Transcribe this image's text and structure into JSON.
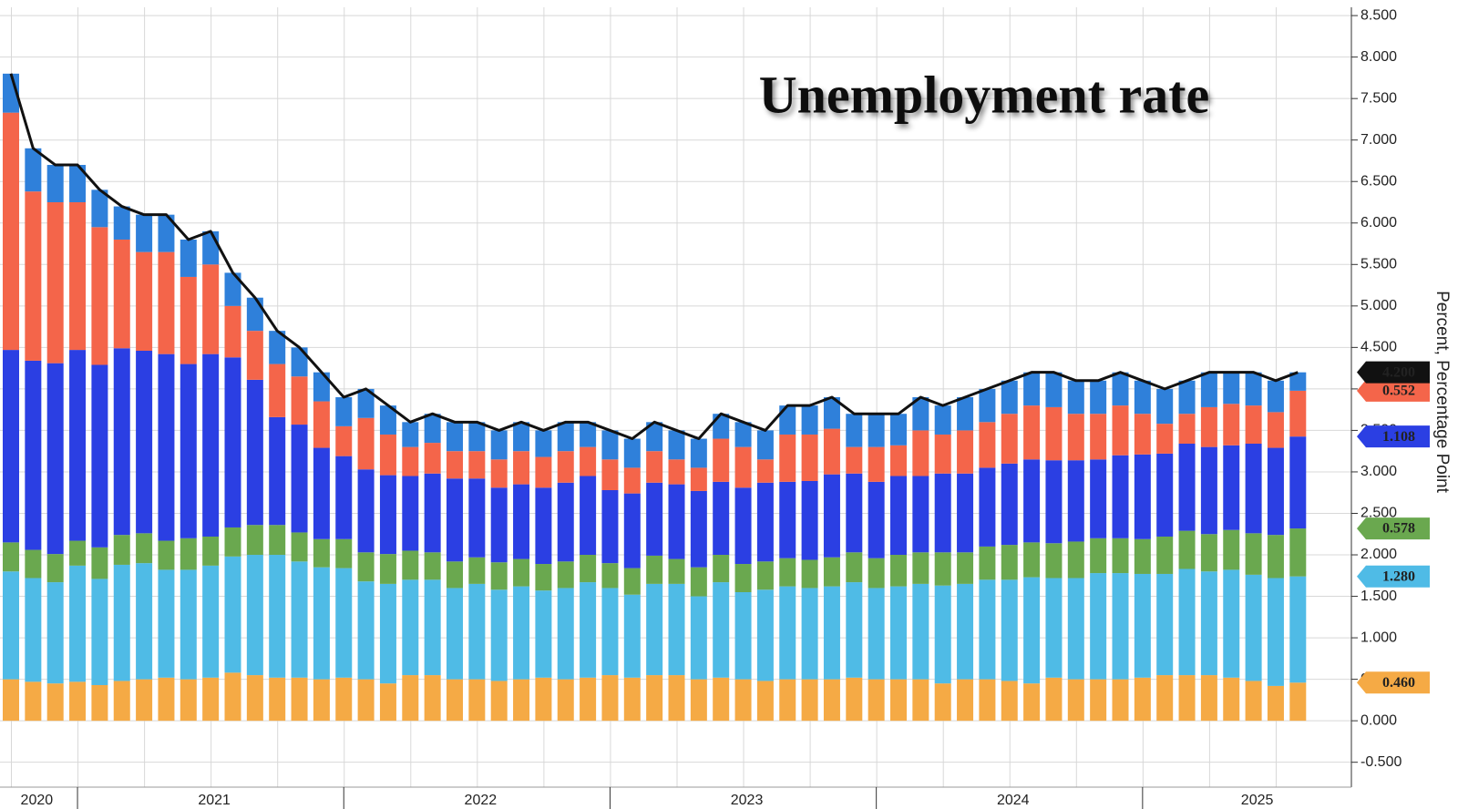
{
  "chart_data": {
    "type": "bar",
    "stacked": true,
    "title": "Unemployment rate",
    "y_axis_label": "Percent, Percentage Point",
    "grid": true,
    "categories": [
      null,
      "2020",
      null,
      null,
      null,
      null,
      null,
      null,
      null,
      "2021",
      null,
      null,
      null,
      null,
      null,
      null,
      null,
      null,
      null,
      null,
      null,
      "2022",
      null,
      null,
      null,
      null,
      null,
      null,
      null,
      null,
      null,
      null,
      null,
      "2023",
      null,
      null,
      null,
      null,
      null,
      null,
      null,
      null,
      null,
      null,
      null,
      "2024",
      null,
      null,
      null,
      null,
      null,
      null,
      null,
      null,
      null,
      null,
      "2025",
      null,
      null
    ],
    "ylim": [
      -0.8,
      8.6
    ],
    "yticks": [
      {
        "value": -0.5,
        "label": "-0.500"
      },
      {
        "value": 0,
        "label": "0.000"
      },
      {
        "value": 0.5,
        "label": "0.500"
      },
      {
        "value": 1,
        "label": "1.000"
      },
      {
        "value": 1.5,
        "label": "1.500"
      },
      {
        "value": 2,
        "label": "2.000"
      },
      {
        "value": 2.5,
        "label": "2.500"
      },
      {
        "value": 3,
        "label": "3.000"
      },
      {
        "value": 3.5,
        "label": "3.500"
      },
      {
        "value": 4,
        "label": "4.000"
      },
      {
        "value": 4.5,
        "label": "4.500"
      },
      {
        "value": 5,
        "label": "5.000"
      },
      {
        "value": 5.5,
        "label": "5.500"
      },
      {
        "value": 6,
        "label": "6.000"
      },
      {
        "value": 6.5,
        "label": "6.500"
      },
      {
        "value": 7,
        "label": "7.000"
      },
      {
        "value": 7.5,
        "label": "7.500"
      },
      {
        "value": 8,
        "label": "8.000"
      },
      {
        "value": 8.5,
        "label": "8.500"
      }
    ],
    "series": [
      {
        "color": "#f5aa45",
        "end_label": {
          "value": 0.46,
          "label": "0.460"
        },
        "values": [
          0.5,
          0.47,
          0.45,
          0.47,
          0.43,
          0.48,
          0.5,
          0.52,
          0.5,
          0.52,
          0.58,
          0.55,
          0.52,
          0.52,
          0.5,
          0.52,
          0.5,
          0.45,
          0.55,
          0.55,
          0.5,
          0.5,
          0.48,
          0.5,
          0.52,
          0.5,
          0.52,
          0.55,
          0.52,
          0.55,
          0.55,
          0.5,
          0.52,
          0.5,
          0.48,
          0.5,
          0.5,
          0.5,
          0.52,
          0.5,
          0.5,
          0.5,
          0.45,
          0.5,
          0.5,
          0.48,
          0.45,
          0.52,
          0.5,
          0.5,
          0.5,
          0.52,
          0.55,
          0.55,
          0.55,
          0.52,
          0.48,
          0.42,
          0.46
        ]
      },
      {
        "color": "#4fbbe6",
        "end_label": {
          "value": 1.28,
          "label": "1.280"
        },
        "values": [
          1.3,
          1.25,
          1.22,
          1.4,
          1.28,
          1.4,
          1.4,
          1.3,
          1.32,
          1.35,
          1.4,
          1.45,
          1.48,
          1.4,
          1.35,
          1.32,
          1.18,
          1.2,
          1.15,
          1.15,
          1.1,
          1.15,
          1.1,
          1.12,
          1.05,
          1.1,
          1.15,
          1.05,
          1.0,
          1.1,
          1.1,
          1.0,
          1.15,
          1.05,
          1.1,
          1.12,
          1.1,
          1.12,
          1.15,
          1.1,
          1.12,
          1.15,
          1.18,
          1.15,
          1.2,
          1.22,
          1.28,
          1.2,
          1.22,
          1.28,
          1.28,
          1.25,
          1.22,
          1.28,
          1.25,
          1.3,
          1.28,
          1.3,
          1.28
        ]
      },
      {
        "color": "#6aa84f",
        "end_label": {
          "value": 0.578,
          "label": "0.578"
        },
        "values": [
          0.35,
          0.34,
          0.34,
          0.3,
          0.38,
          0.36,
          0.36,
          0.35,
          0.38,
          0.35,
          0.35,
          0.36,
          0.36,
          0.35,
          0.34,
          0.35,
          0.35,
          0.36,
          0.35,
          0.33,
          0.32,
          0.32,
          0.33,
          0.33,
          0.32,
          0.32,
          0.33,
          0.3,
          0.32,
          0.34,
          0.3,
          0.35,
          0.33,
          0.34,
          0.34,
          0.34,
          0.34,
          0.35,
          0.36,
          0.36,
          0.38,
          0.38,
          0.4,
          0.38,
          0.4,
          0.42,
          0.42,
          0.42,
          0.44,
          0.42,
          0.42,
          0.42,
          0.45,
          0.46,
          0.45,
          0.48,
          0.5,
          0.52,
          0.578
        ]
      },
      {
        "color": "#2b3fe3",
        "end_label": {
          "value": 1.108,
          "label": "1.108"
        },
        "values": [
          2.32,
          2.28,
          2.3,
          2.3,
          2.2,
          2.25,
          2.2,
          2.25,
          2.1,
          2.2,
          2.05,
          1.75,
          1.3,
          1.3,
          1.1,
          1.0,
          1.0,
          0.95,
          0.9,
          0.95,
          1.0,
          0.95,
          0.9,
          0.9,
          0.92,
          0.95,
          0.95,
          0.88,
          0.9,
          0.88,
          0.9,
          0.92,
          0.88,
          0.92,
          0.95,
          0.92,
          0.95,
          1.0,
          0.95,
          0.92,
          0.95,
          0.92,
          0.95,
          0.95,
          0.95,
          0.98,
          1.0,
          1.0,
          0.98,
          0.95,
          1.0,
          1.02,
          1.0,
          1.05,
          1.05,
          1.02,
          1.08,
          1.05,
          1.108
        ]
      },
      {
        "color": "#f4654a",
        "end_label": {
          "value": 0.552,
          "label": "0.552"
        },
        "values": [
          2.86,
          2.04,
          1.94,
          1.78,
          1.66,
          1.31,
          1.19,
          1.23,
          1.05,
          1.08,
          0.62,
          0.59,
          0.64,
          0.58,
          0.56,
          0.36,
          0.62,
          0.49,
          0.35,
          0.37,
          0.33,
          0.33,
          0.34,
          0.4,
          0.37,
          0.38,
          0.35,
          0.37,
          0.31,
          0.38,
          0.3,
          0.28,
          0.52,
          0.49,
          0.28,
          0.57,
          0.56,
          0.55,
          0.32,
          0.42,
          0.37,
          0.55,
          0.47,
          0.52,
          0.55,
          0.6,
          0.65,
          0.64,
          0.56,
          0.55,
          0.6,
          0.49,
          0.36,
          0.36,
          0.48,
          0.5,
          0.46,
          0.43,
          0.552
        ]
      },
      {
        "color": "#2f80da",
        "values": [
          0.47,
          0.52,
          0.45,
          0.45,
          0.45,
          0.4,
          0.45,
          0.45,
          0.45,
          0.4,
          0.4,
          0.4,
          0.4,
          0.35,
          0.35,
          0.35,
          0.35,
          0.35,
          0.3,
          0.35,
          0.35,
          0.35,
          0.35,
          0.35,
          0.32,
          0.35,
          0.3,
          0.35,
          0.35,
          0.35,
          0.35,
          0.35,
          0.3,
          0.3,
          0.35,
          0.35,
          0.35,
          0.38,
          0.4,
          0.4,
          0.38,
          0.4,
          0.35,
          0.4,
          0.4,
          0.4,
          0.4,
          0.42,
          0.4,
          0.4,
          0.4,
          0.4,
          0.42,
          0.4,
          0.42,
          0.38,
          0.4,
          0.38,
          0.222
        ]
      },
      {
        "type": "line",
        "color": "#111111",
        "end_label": {
          "value": 4.2,
          "label": "4.200"
        },
        "values": [
          7.8,
          6.9,
          6.7,
          6.7,
          6.4,
          6.2,
          6.1,
          6.1,
          5.8,
          5.9,
          5.4,
          5.1,
          4.7,
          4.5,
          4.2,
          3.9,
          4.0,
          3.8,
          3.6,
          3.7,
          3.6,
          3.6,
          3.5,
          3.6,
          3.5,
          3.6,
          3.6,
          3.5,
          3.4,
          3.6,
          3.5,
          3.4,
          3.7,
          3.6,
          3.5,
          3.8,
          3.8,
          3.9,
          3.7,
          3.7,
          3.7,
          3.9,
          3.8,
          3.9,
          4.0,
          4.1,
          4.2,
          4.2,
          4.1,
          4.1,
          4.2,
          4.1,
          4.0,
          4.1,
          4.2,
          4.2,
          4.2,
          4.1,
          4.2
        ]
      }
    ]
  }
}
